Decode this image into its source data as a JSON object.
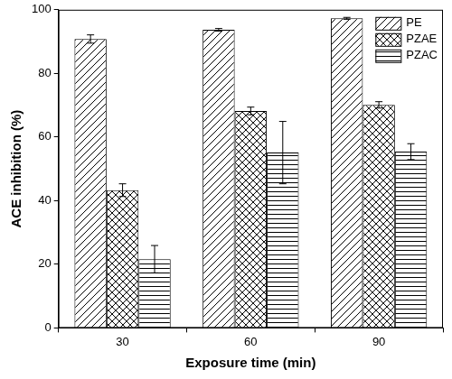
{
  "chart_data": {
    "type": "bar",
    "x_label": "Exposure time (min)",
    "y_label": "ACE inhibition (%)",
    "categories": [
      "30",
      "60",
      "90"
    ],
    "series": [
      {
        "name": "PE",
        "color": "#000000",
        "values": [
          90.8,
          93.7,
          97.3
        ],
        "errors": [
          1.3,
          0.4,
          0.3
        ]
      },
      {
        "name": "PZAE",
        "color": "#000000",
        "values": [
          43.3,
          68.2,
          70.1
        ],
        "errors": [
          2.0,
          1.2,
          1.0
        ]
      },
      {
        "name": "PZAC",
        "color": "#000000",
        "values": [
          21.6,
          55.1,
          55.4
        ],
        "errors": [
          4.3,
          9.8,
          2.5
        ]
      }
    ],
    "ylim": [
      0,
      100
    ],
    "yticks": [
      0,
      20,
      40,
      60,
      80,
      100
    ],
    "grid": false,
    "legend": "upper right"
  }
}
